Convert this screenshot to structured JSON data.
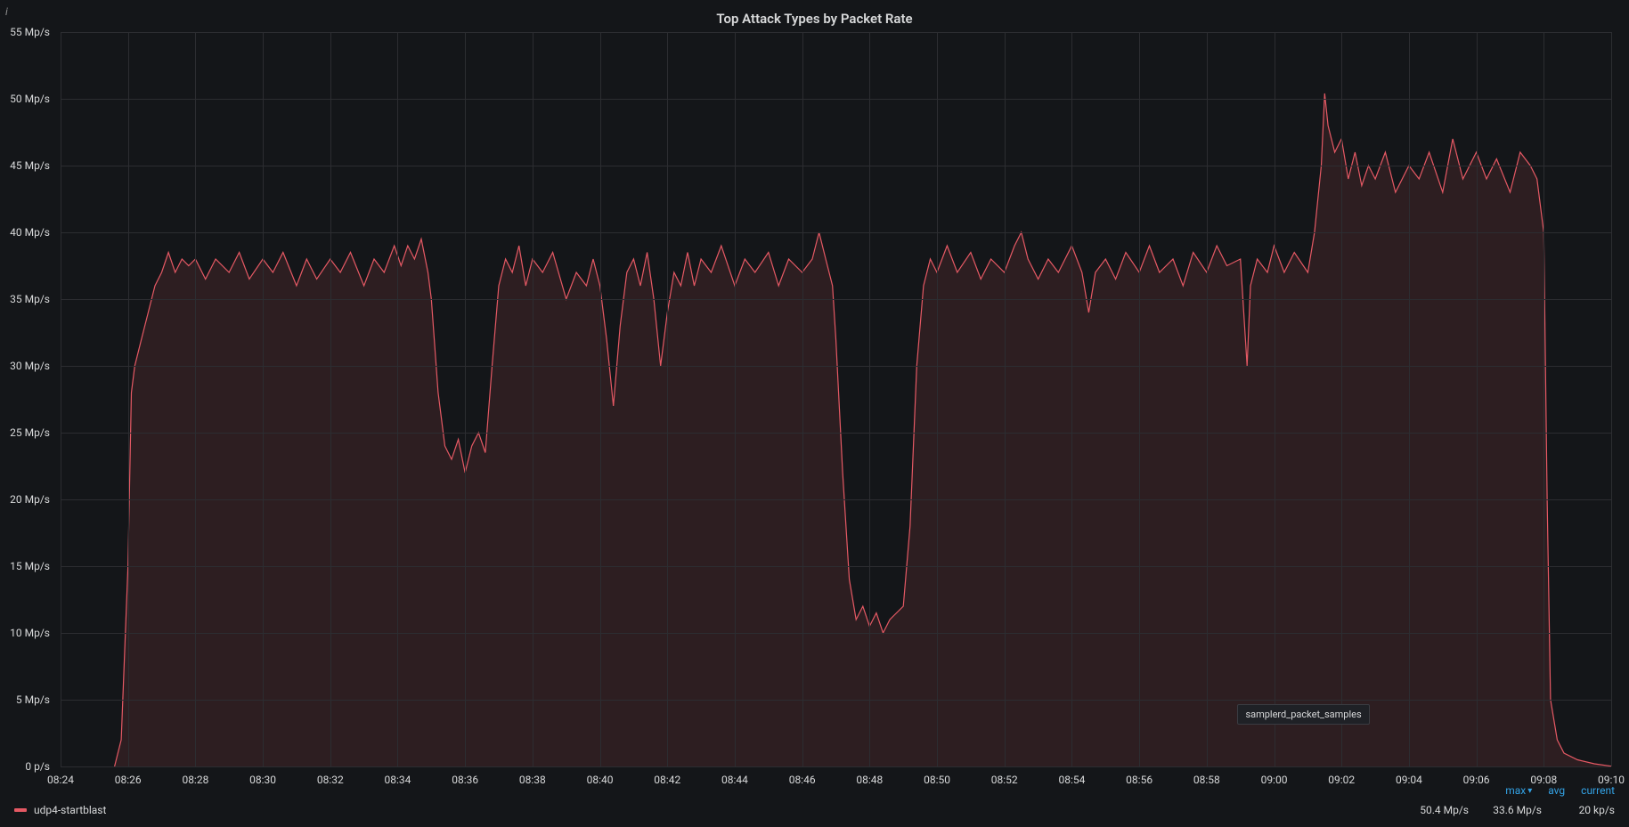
{
  "panel": {
    "title": "Top Attack Types by Packet Rate",
    "info_icon": "i"
  },
  "chart": {
    "type": "area-line",
    "background_color": "#141619",
    "grid_color": "#2c2d31",
    "series_color": "#e55964",
    "fill_color": "rgba(229,89,100,0.12)",
    "line_width": 1.2,
    "y_axis": {
      "unit_suffix": " Mp/s",
      "min": 0,
      "max": 55,
      "tick_step": 5,
      "ticks": [
        {
          "v": 0,
          "label": "0 p/s"
        },
        {
          "v": 5,
          "label": "5 Mp/s"
        },
        {
          "v": 10,
          "label": "10 Mp/s"
        },
        {
          "v": 15,
          "label": "15 Mp/s"
        },
        {
          "v": 20,
          "label": "20 Mp/s"
        },
        {
          "v": 25,
          "label": "25 Mp/s"
        },
        {
          "v": 30,
          "label": "30 Mp/s"
        },
        {
          "v": 35,
          "label": "35 Mp/s"
        },
        {
          "v": 40,
          "label": "40 Mp/s"
        },
        {
          "v": 45,
          "label": "45 Mp/s"
        },
        {
          "v": 50,
          "label": "50 Mp/s"
        },
        {
          "v": 55,
          "label": "55 Mp/s"
        }
      ]
    },
    "x_axis": {
      "min_min": 504,
      "max_min": 550,
      "tick_step_min": 2,
      "ticks": [
        {
          "m": 504,
          "label": "08:24"
        },
        {
          "m": 506,
          "label": "08:26"
        },
        {
          "m": 508,
          "label": "08:28"
        },
        {
          "m": 510,
          "label": "08:30"
        },
        {
          "m": 512,
          "label": "08:32"
        },
        {
          "m": 514,
          "label": "08:34"
        },
        {
          "m": 516,
          "label": "08:36"
        },
        {
          "m": 518,
          "label": "08:38"
        },
        {
          "m": 520,
          "label": "08:40"
        },
        {
          "m": 522,
          "label": "08:42"
        },
        {
          "m": 524,
          "label": "08:44"
        },
        {
          "m": 526,
          "label": "08:46"
        },
        {
          "m": 528,
          "label": "08:48"
        },
        {
          "m": 530,
          "label": "08:50"
        },
        {
          "m": 532,
          "label": "08:52"
        },
        {
          "m": 534,
          "label": "08:54"
        },
        {
          "m": 536,
          "label": "08:56"
        },
        {
          "m": 538,
          "label": "08:58"
        },
        {
          "m": 540,
          "label": "09:00"
        },
        {
          "m": 542,
          "label": "09:02"
        },
        {
          "m": 544,
          "label": "09:04"
        },
        {
          "m": 546,
          "label": "09:06"
        },
        {
          "m": 548,
          "label": "09:08"
        },
        {
          "m": 550,
          "label": "09:10"
        }
      ]
    },
    "tooltip": {
      "text": "samplerd_packet_samples",
      "x_min": 540.5,
      "y_val": 4
    },
    "data": [
      {
        "m": 505.6,
        "v": 0
      },
      {
        "m": 505.8,
        "v": 2
      },
      {
        "m": 506.0,
        "v": 15
      },
      {
        "m": 506.1,
        "v": 28
      },
      {
        "m": 506.2,
        "v": 30
      },
      {
        "m": 506.4,
        "v": 32
      },
      {
        "m": 506.6,
        "v": 34
      },
      {
        "m": 506.8,
        "v": 36
      },
      {
        "m": 507.0,
        "v": 37
      },
      {
        "m": 507.2,
        "v": 38.5
      },
      {
        "m": 507.4,
        "v": 37
      },
      {
        "m": 507.6,
        "v": 38
      },
      {
        "m": 507.8,
        "v": 37.5
      },
      {
        "m": 508.0,
        "v": 38
      },
      {
        "m": 508.3,
        "v": 36.5
      },
      {
        "m": 508.6,
        "v": 38
      },
      {
        "m": 509.0,
        "v": 37
      },
      {
        "m": 509.3,
        "v": 38.5
      },
      {
        "m": 509.6,
        "v": 36.5
      },
      {
        "m": 510.0,
        "v": 38
      },
      {
        "m": 510.3,
        "v": 37
      },
      {
        "m": 510.6,
        "v": 38.5
      },
      {
        "m": 511.0,
        "v": 36
      },
      {
        "m": 511.3,
        "v": 38
      },
      {
        "m": 511.6,
        "v": 36.5
      },
      {
        "m": 512.0,
        "v": 38
      },
      {
        "m": 512.3,
        "v": 37
      },
      {
        "m": 512.6,
        "v": 38.5
      },
      {
        "m": 513.0,
        "v": 36
      },
      {
        "m": 513.3,
        "v": 38
      },
      {
        "m": 513.6,
        "v": 37
      },
      {
        "m": 513.9,
        "v": 39
      },
      {
        "m": 514.1,
        "v": 37.5
      },
      {
        "m": 514.3,
        "v": 39
      },
      {
        "m": 514.5,
        "v": 38
      },
      {
        "m": 514.7,
        "v": 39.5
      },
      {
        "m": 514.9,
        "v": 37
      },
      {
        "m": 515.0,
        "v": 35
      },
      {
        "m": 515.2,
        "v": 28
      },
      {
        "m": 515.4,
        "v": 24
      },
      {
        "m": 515.6,
        "v": 23
      },
      {
        "m": 515.8,
        "v": 24.5
      },
      {
        "m": 516.0,
        "v": 22
      },
      {
        "m": 516.2,
        "v": 24
      },
      {
        "m": 516.4,
        "v": 25
      },
      {
        "m": 516.6,
        "v": 23.5
      },
      {
        "m": 516.8,
        "v": 30
      },
      {
        "m": 517.0,
        "v": 36
      },
      {
        "m": 517.2,
        "v": 38
      },
      {
        "m": 517.4,
        "v": 37
      },
      {
        "m": 517.6,
        "v": 39
      },
      {
        "m": 517.8,
        "v": 36
      },
      {
        "m": 518.0,
        "v": 38
      },
      {
        "m": 518.3,
        "v": 37
      },
      {
        "m": 518.6,
        "v": 38.5
      },
      {
        "m": 519.0,
        "v": 35
      },
      {
        "m": 519.3,
        "v": 37
      },
      {
        "m": 519.6,
        "v": 36
      },
      {
        "m": 519.8,
        "v": 38
      },
      {
        "m": 520.0,
        "v": 36
      },
      {
        "m": 520.2,
        "v": 32
      },
      {
        "m": 520.4,
        "v": 27
      },
      {
        "m": 520.6,
        "v": 33
      },
      {
        "m": 520.8,
        "v": 37
      },
      {
        "m": 521.0,
        "v": 38
      },
      {
        "m": 521.2,
        "v": 36
      },
      {
        "m": 521.4,
        "v": 38.5
      },
      {
        "m": 521.6,
        "v": 35
      },
      {
        "m": 521.8,
        "v": 30
      },
      {
        "m": 522.0,
        "v": 34
      },
      {
        "m": 522.2,
        "v": 37
      },
      {
        "m": 522.4,
        "v": 36
      },
      {
        "m": 522.6,
        "v": 38.5
      },
      {
        "m": 522.8,
        "v": 36
      },
      {
        "m": 523.0,
        "v": 38
      },
      {
        "m": 523.3,
        "v": 37
      },
      {
        "m": 523.6,
        "v": 39
      },
      {
        "m": 524.0,
        "v": 36
      },
      {
        "m": 524.3,
        "v": 38
      },
      {
        "m": 524.6,
        "v": 37
      },
      {
        "m": 525.0,
        "v": 38.5
      },
      {
        "m": 525.3,
        "v": 36
      },
      {
        "m": 525.6,
        "v": 38
      },
      {
        "m": 526.0,
        "v": 37
      },
      {
        "m": 526.3,
        "v": 38
      },
      {
        "m": 526.5,
        "v": 40
      },
      {
        "m": 526.7,
        "v": 38
      },
      {
        "m": 526.9,
        "v": 36
      },
      {
        "m": 527.0,
        "v": 32
      },
      {
        "m": 527.2,
        "v": 22
      },
      {
        "m": 527.4,
        "v": 14
      },
      {
        "m": 527.6,
        "v": 11
      },
      {
        "m": 527.8,
        "v": 12
      },
      {
        "m": 528.0,
        "v": 10.5
      },
      {
        "m": 528.2,
        "v": 11.5
      },
      {
        "m": 528.4,
        "v": 10
      },
      {
        "m": 528.6,
        "v": 11
      },
      {
        "m": 528.8,
        "v": 11.5
      },
      {
        "m": 529.0,
        "v": 12
      },
      {
        "m": 529.2,
        "v": 18
      },
      {
        "m": 529.4,
        "v": 30
      },
      {
        "m": 529.6,
        "v": 36
      },
      {
        "m": 529.8,
        "v": 38
      },
      {
        "m": 530.0,
        "v": 37
      },
      {
        "m": 530.3,
        "v": 39
      },
      {
        "m": 530.6,
        "v": 37
      },
      {
        "m": 531.0,
        "v": 38.5
      },
      {
        "m": 531.3,
        "v": 36.5
      },
      {
        "m": 531.6,
        "v": 38
      },
      {
        "m": 532.0,
        "v": 37
      },
      {
        "m": 532.3,
        "v": 39
      },
      {
        "m": 532.5,
        "v": 40
      },
      {
        "m": 532.7,
        "v": 38
      },
      {
        "m": 533.0,
        "v": 36.5
      },
      {
        "m": 533.3,
        "v": 38
      },
      {
        "m": 533.6,
        "v": 37
      },
      {
        "m": 534.0,
        "v": 39
      },
      {
        "m": 534.3,
        "v": 37
      },
      {
        "m": 534.5,
        "v": 34
      },
      {
        "m": 534.7,
        "v": 37
      },
      {
        "m": 535.0,
        "v": 38
      },
      {
        "m": 535.3,
        "v": 36.5
      },
      {
        "m": 535.6,
        "v": 38.5
      },
      {
        "m": 536.0,
        "v": 37
      },
      {
        "m": 536.3,
        "v": 39
      },
      {
        "m": 536.6,
        "v": 37
      },
      {
        "m": 537.0,
        "v": 38
      },
      {
        "m": 537.3,
        "v": 36
      },
      {
        "m": 537.6,
        "v": 38.5
      },
      {
        "m": 538.0,
        "v": 37
      },
      {
        "m": 538.3,
        "v": 39
      },
      {
        "m": 538.6,
        "v": 37.5
      },
      {
        "m": 539.0,
        "v": 38
      },
      {
        "m": 539.2,
        "v": 30
      },
      {
        "m": 539.3,
        "v": 36
      },
      {
        "m": 539.5,
        "v": 38
      },
      {
        "m": 539.8,
        "v": 37
      },
      {
        "m": 540.0,
        "v": 39
      },
      {
        "m": 540.3,
        "v": 37
      },
      {
        "m": 540.6,
        "v": 38.5
      },
      {
        "m": 541.0,
        "v": 37
      },
      {
        "m": 541.2,
        "v": 40
      },
      {
        "m": 541.4,
        "v": 45
      },
      {
        "m": 541.5,
        "v": 50.4
      },
      {
        "m": 541.6,
        "v": 48
      },
      {
        "m": 541.8,
        "v": 46
      },
      {
        "m": 542.0,
        "v": 47
      },
      {
        "m": 542.2,
        "v": 44
      },
      {
        "m": 542.4,
        "v": 46
      },
      {
        "m": 542.6,
        "v": 43.5
      },
      {
        "m": 542.8,
        "v": 45
      },
      {
        "m": 543.0,
        "v": 44
      },
      {
        "m": 543.3,
        "v": 46
      },
      {
        "m": 543.6,
        "v": 43
      },
      {
        "m": 544.0,
        "v": 45
      },
      {
        "m": 544.3,
        "v": 44
      },
      {
        "m": 544.6,
        "v": 46
      },
      {
        "m": 545.0,
        "v": 43
      },
      {
        "m": 545.3,
        "v": 47
      },
      {
        "m": 545.6,
        "v": 44
      },
      {
        "m": 546.0,
        "v": 46
      },
      {
        "m": 546.3,
        "v": 44
      },
      {
        "m": 546.6,
        "v": 45.5
      },
      {
        "m": 547.0,
        "v": 43
      },
      {
        "m": 547.3,
        "v": 46
      },
      {
        "m": 547.6,
        "v": 45
      },
      {
        "m": 547.8,
        "v": 44
      },
      {
        "m": 548.0,
        "v": 40
      },
      {
        "m": 548.1,
        "v": 20
      },
      {
        "m": 548.2,
        "v": 5
      },
      {
        "m": 548.4,
        "v": 2
      },
      {
        "m": 548.6,
        "v": 1
      },
      {
        "m": 549.0,
        "v": 0.5
      },
      {
        "m": 549.5,
        "v": 0.2
      },
      {
        "m": 550.0,
        "v": 0.02
      }
    ]
  },
  "legend": {
    "headers": {
      "sort_col": "max",
      "avg": "avg",
      "current": "current"
    },
    "series": [
      {
        "name": "udp4-startblast",
        "color": "#e55964",
        "max": "50.4 Mp/s",
        "avg": "33.6 Mp/s",
        "current": "20 kp/s"
      }
    ]
  }
}
